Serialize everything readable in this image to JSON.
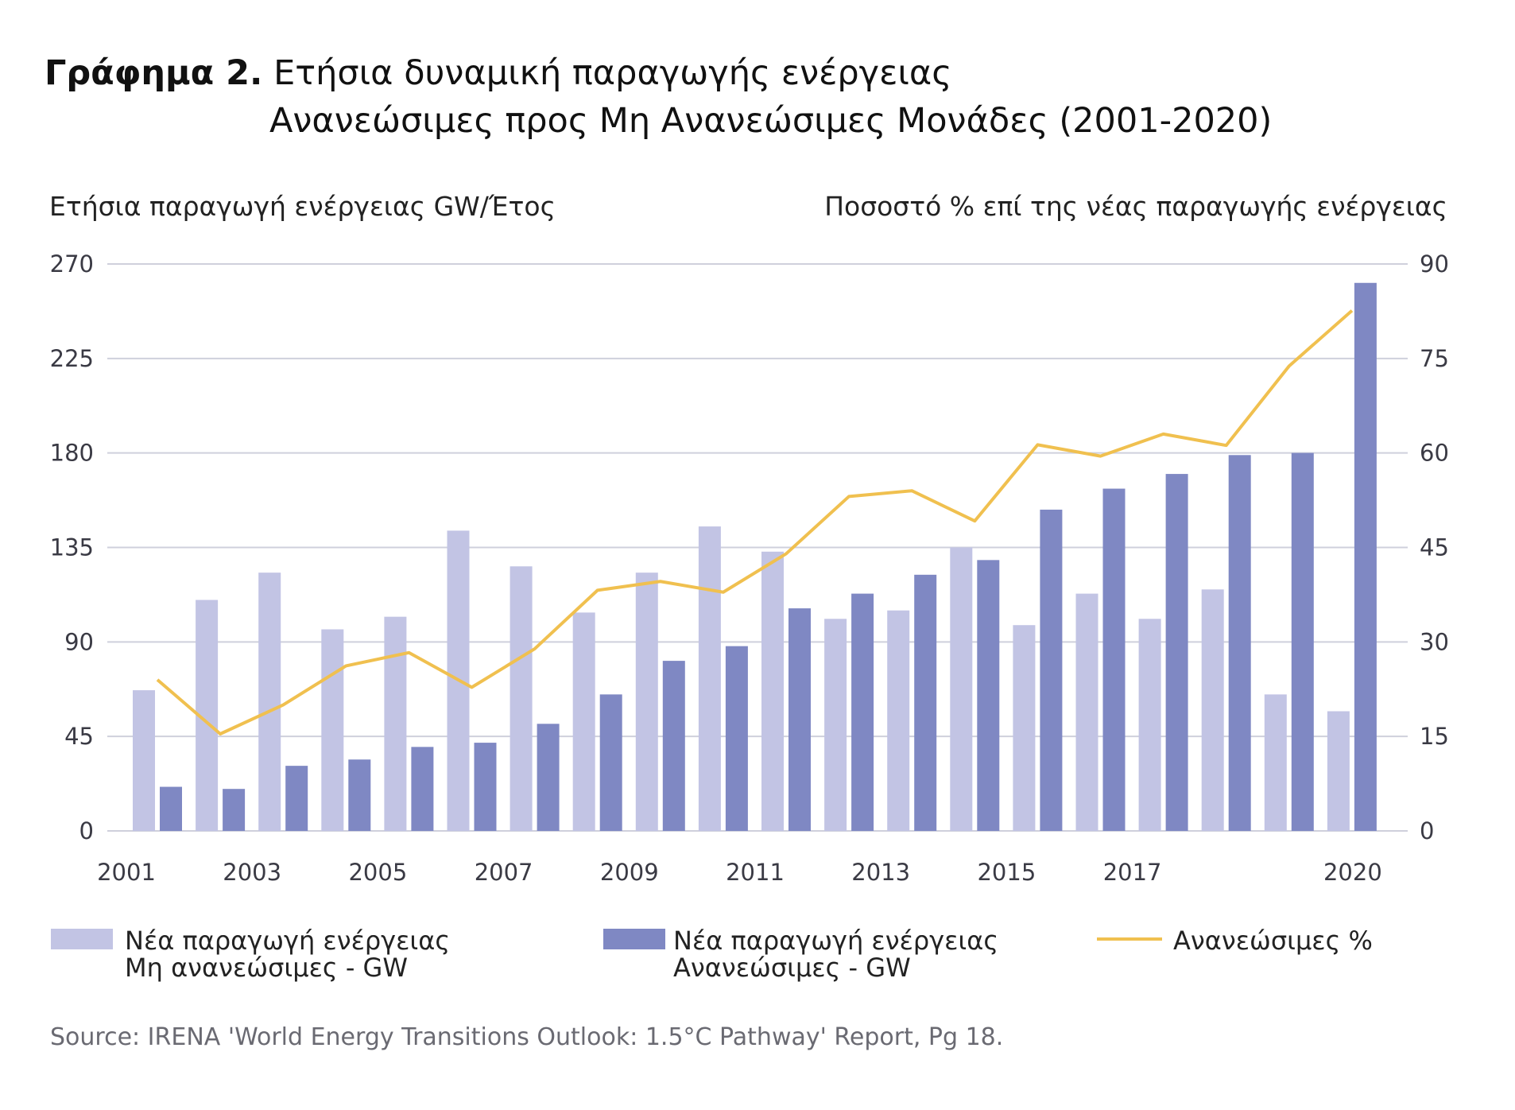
{
  "title": {
    "label": "Γράφημα 2.",
    "line1": "Ετήσια δυναμική παραγωγής ενέργειας",
    "line2": "Ανανεώσιμες προς Μη Ανανεώσιμες Μονάδες (2001-2020)"
  },
  "chart_data": {
    "type": "bar",
    "years": [
      2001,
      2002,
      2003,
      2004,
      2005,
      2006,
      2007,
      2008,
      2009,
      2010,
      2011,
      2012,
      2013,
      2014,
      2015,
      2016,
      2017,
      2018,
      2019,
      2020
    ],
    "x_tick_labels": [
      "2001",
      "2003",
      "2005",
      "2007",
      "2009",
      "2011",
      "2013",
      "2015",
      "2017",
      "2020"
    ],
    "ylabel_left": "Ετήσια παραγωγή ενέργειας GW/Έτος",
    "ylabel_right": "Ποσοστό % επί της νέας παραγωγής ενέργειας",
    "ylim_left": [
      0,
      270
    ],
    "ylim_right": [
      0,
      90
    ],
    "yticks_left": [
      "0",
      "45",
      "90",
      "135",
      "180",
      "225",
      "270"
    ],
    "yticks_right": [
      "0",
      "15",
      "30",
      "45",
      "60",
      "75",
      "90"
    ],
    "grid": true,
    "legend_placement": "bottom",
    "series": [
      {
        "name": "Νέα παραγωγή ενέργειας Μη ανανεώσιμες - GW",
        "type": "bar",
        "axis": "left",
        "color": "#c2c4e4",
        "values": [
          67,
          110,
          123,
          96,
          102,
          143,
          126,
          104,
          123,
          145,
          133,
          101,
          105,
          135,
          98,
          113,
          101,
          115,
          65,
          57
        ]
      },
      {
        "name": "Νέα παραγωγή ενέργειας Ανανεώσιμες - GW",
        "type": "bar",
        "axis": "left",
        "color": "#7f88c3",
        "values": [
          21,
          20,
          31,
          34,
          40,
          42,
          51,
          65,
          81,
          88,
          106,
          113,
          122,
          129,
          153,
          163,
          170,
          179,
          180,
          261
        ]
      },
      {
        "name": "Ανανεώσιμες %",
        "type": "line",
        "axis": "right",
        "color": "#f0c04f",
        "values": [
          24,
          15.4,
          20,
          26.2,
          28.3,
          22.8,
          28.9,
          38.2,
          39.6,
          37.9,
          44,
          53.1,
          54,
          49.2,
          61.3,
          59.5,
          63,
          61.2,
          73.8,
          82.6
        ]
      }
    ]
  },
  "legend": [
    {
      "line1": "Νέα παραγωγή ενέργειας",
      "line2": "Μη ανανεώσιμες - GW"
    },
    {
      "line1": "Νέα παραγωγή ενέργειας",
      "line2": "Ανανεώσιμες - GW"
    },
    {
      "line1": "Ανανεώσιμες %"
    }
  ],
  "source": "Source: IRENA 'World Energy Transitions Outlook: 1.5°C Pathway' Report, Pg 18."
}
